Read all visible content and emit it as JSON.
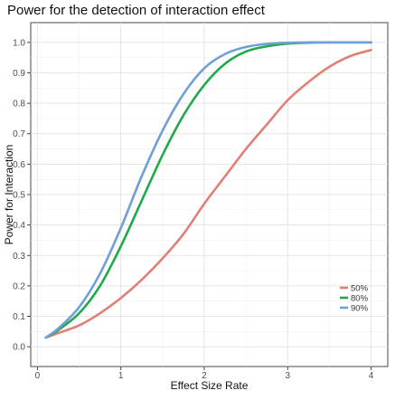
{
  "chart_data": {
    "type": "line",
    "title": "Power for the detection of interaction effect",
    "xlabel": "Effect Size Rate",
    "ylabel": "Power for Interaction",
    "xlim": [
      -0.08,
      4.2
    ],
    "ylim": [
      -0.065,
      1.065
    ],
    "xticks": [
      0,
      1,
      2,
      3,
      4
    ],
    "yticks": [
      0.0,
      0.1,
      0.2,
      0.3,
      0.4,
      0.5,
      0.6,
      0.7,
      0.8,
      0.9,
      1.0
    ],
    "xtick_labels": [
      "0",
      "1",
      "2",
      "3",
      "4"
    ],
    "ytick_labels": [
      "0.0",
      "0.1",
      "0.2",
      "0.3",
      "0.4",
      "0.5",
      "0.6",
      "0.7",
      "0.8",
      "0.9",
      "1.0"
    ],
    "grid": true,
    "legend_position": "bottom-right",
    "series": [
      {
        "name": "50%",
        "color": "#e07f74",
        "x": [
          0.1,
          0.25,
          0.5,
          0.75,
          1.0,
          1.25,
          1.5,
          1.75,
          2.0,
          2.25,
          2.5,
          2.75,
          3.0,
          3.25,
          3.5,
          3.75,
          4.0
        ],
        "y": [
          0.03,
          0.045,
          0.07,
          0.11,
          0.16,
          0.22,
          0.29,
          0.37,
          0.47,
          0.56,
          0.65,
          0.73,
          0.81,
          0.87,
          0.92,
          0.955,
          0.975
        ]
      },
      {
        "name": "80%",
        "color": "#1ea94a",
        "x": [
          0.1,
          0.25,
          0.5,
          0.75,
          1.0,
          1.25,
          1.5,
          1.75,
          2.0,
          2.25,
          2.5,
          2.75,
          3.0,
          3.25,
          3.5,
          3.75,
          4.0
        ],
        "y": [
          0.03,
          0.055,
          0.11,
          0.2,
          0.33,
          0.48,
          0.63,
          0.76,
          0.86,
          0.93,
          0.97,
          0.987,
          0.996,
          0.999,
          1.0,
          1.0,
          1.0
        ]
      },
      {
        "name": "90%",
        "color": "#6f9fd6",
        "x": [
          0.1,
          0.25,
          0.5,
          0.75,
          1.0,
          1.25,
          1.5,
          1.75,
          2.0,
          2.25,
          2.5,
          2.75,
          3.0,
          3.25,
          3.5,
          3.75,
          4.0
        ],
        "y": [
          0.03,
          0.06,
          0.13,
          0.24,
          0.39,
          0.56,
          0.71,
          0.83,
          0.915,
          0.962,
          0.985,
          0.995,
          0.999,
          1.0,
          1.0,
          1.0,
          1.0
        ]
      }
    ]
  }
}
